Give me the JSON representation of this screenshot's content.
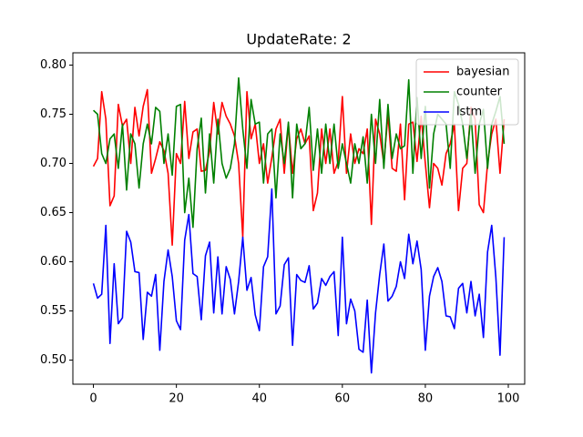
{
  "chart_data": {
    "type": "line",
    "title": "UpdateRate: 2",
    "x": [
      0,
      1,
      2,
      3,
      4,
      5,
      6,
      7,
      8,
      9,
      10,
      11,
      12,
      13,
      14,
      15,
      16,
      17,
      18,
      19,
      20,
      21,
      22,
      23,
      24,
      25,
      26,
      27,
      28,
      29,
      30,
      31,
      32,
      33,
      34,
      35,
      36,
      37,
      38,
      39,
      40,
      41,
      42,
      43,
      44,
      45,
      46,
      47,
      48,
      49,
      50,
      51,
      52,
      53,
      54,
      55,
      56,
      57,
      58,
      59,
      60,
      61,
      62,
      63,
      64,
      65,
      66,
      67,
      68,
      69,
      70,
      71,
      72,
      73,
      74,
      75,
      76,
      77,
      78,
      79,
      80,
      81,
      82,
      83,
      84,
      85,
      86,
      87,
      88,
      89,
      90,
      91,
      92,
      93,
      94,
      95,
      96,
      97,
      98,
      99
    ],
    "series": [
      {
        "name": "bayesian",
        "color": "#ff0000",
        "values": [
          0.697,
          0.705,
          0.773,
          0.745,
          0.657,
          0.667,
          0.76,
          0.738,
          0.745,
          0.7,
          0.757,
          0.728,
          0.758,
          0.775,
          0.69,
          0.705,
          0.722,
          0.713,
          0.69,
          0.617,
          0.71,
          0.7,
          0.763,
          0.705,
          0.732,
          0.735,
          0.692,
          0.693,
          0.712,
          0.762,
          0.73,
          0.762,
          0.748,
          0.74,
          0.728,
          0.7,
          0.625,
          0.773,
          0.725,
          0.74,
          0.7,
          0.72,
          0.68,
          0.706,
          0.735,
          0.745,
          0.69,
          0.74,
          0.69,
          0.725,
          0.735,
          0.72,
          0.728,
          0.652,
          0.67,
          0.735,
          0.7,
          0.735,
          0.69,
          0.702,
          0.768,
          0.69,
          0.73,
          0.7,
          0.715,
          0.71,
          0.735,
          0.638,
          0.745,
          0.73,
          0.7,
          0.75,
          0.695,
          0.692,
          0.74,
          0.663,
          0.74,
          0.742,
          0.702,
          0.748,
          0.7,
          0.655,
          0.7,
          0.695,
          0.678,
          0.71,
          0.72,
          0.74,
          0.652,
          0.695,
          0.7,
          0.757,
          0.745,
          0.658,
          0.65,
          0.7,
          0.73,
          0.745,
          0.69,
          0.745
        ]
      },
      {
        "name": "counter",
        "color": "#008000",
        "values": [
          0.754,
          0.75,
          0.71,
          0.7,
          0.725,
          0.73,
          0.695,
          0.74,
          0.673,
          0.73,
          0.72,
          0.675,
          0.72,
          0.74,
          0.72,
          0.757,
          0.753,
          0.7,
          0.73,
          0.688,
          0.758,
          0.76,
          0.65,
          0.685,
          0.635,
          0.715,
          0.746,
          0.67,
          0.73,
          0.68,
          0.745,
          0.7,
          0.685,
          0.695,
          0.72,
          0.787,
          0.735,
          0.695,
          0.765,
          0.74,
          0.742,
          0.68,
          0.73,
          0.735,
          0.665,
          0.73,
          0.7,
          0.742,
          0.665,
          0.74,
          0.715,
          0.72,
          0.757,
          0.693,
          0.735,
          0.69,
          0.74,
          0.7,
          0.74,
          0.695,
          0.72,
          0.7,
          0.68,
          0.72,
          0.7,
          0.727,
          0.68,
          0.75,
          0.7,
          0.765,
          0.695,
          0.76,
          0.705,
          0.73,
          0.715,
          0.718,
          0.785,
          0.69,
          0.767,
          0.705,
          0.758,
          0.675,
          0.73,
          0.75,
          0.745,
          0.74,
          0.695,
          0.773,
          0.76,
          0.74,
          0.705,
          0.75,
          0.69,
          0.74,
          0.755,
          0.695,
          0.74,
          0.753,
          0.768,
          0.72
        ]
      },
      {
        "name": "lstm",
        "color": "#0000ff",
        "values": [
          0.578,
          0.563,
          0.567,
          0.637,
          0.517,
          0.598,
          0.537,
          0.543,
          0.631,
          0.62,
          0.59,
          0.589,
          0.521,
          0.569,
          0.565,
          0.587,
          0.51,
          0.58,
          0.612,
          0.585,
          0.54,
          0.531,
          0.622,
          0.648,
          0.588,
          0.585,
          0.541,
          0.606,
          0.62,
          0.548,
          0.605,
          0.547,
          0.595,
          0.582,
          0.547,
          0.58,
          0.625,
          0.571,
          0.584,
          0.546,
          0.53,
          0.595,
          0.605,
          0.674,
          0.547,
          0.555,
          0.597,
          0.604,
          0.515,
          0.587,
          0.581,
          0.579,
          0.596,
          0.552,
          0.558,
          0.583,
          0.576,
          0.585,
          0.59,
          0.525,
          0.625,
          0.537,
          0.562,
          0.55,
          0.511,
          0.508,
          0.561,
          0.487,
          0.548,
          0.587,
          0.618,
          0.56,
          0.565,
          0.575,
          0.6,
          0.583,
          0.628,
          0.598,
          0.621,
          0.592,
          0.51,
          0.565,
          0.585,
          0.594,
          0.58,
          0.545,
          0.544,
          0.532,
          0.573,
          0.578,
          0.548,
          0.58,
          0.545,
          0.567,
          0.523,
          0.61,
          0.637,
          0.584,
          0.505,
          0.625
        ]
      }
    ],
    "xlim": [
      -4.95,
      103.95
    ],
    "xticks": [
      0,
      20,
      40,
      60,
      80,
      100
    ],
    "ylim": [
      0.4755,
      0.8125
    ],
    "yticks": [
      {
        "value": 0.5,
        "label": "0.50"
      },
      0.55,
      {
        "value": 0.6,
        "label": "0.60"
      },
      0.65,
      {
        "value": 0.7,
        "label": "0.70"
      },
      0.75,
      {
        "value": 0.8,
        "label": "0.80"
      }
    ],
    "legend": "upper right"
  }
}
